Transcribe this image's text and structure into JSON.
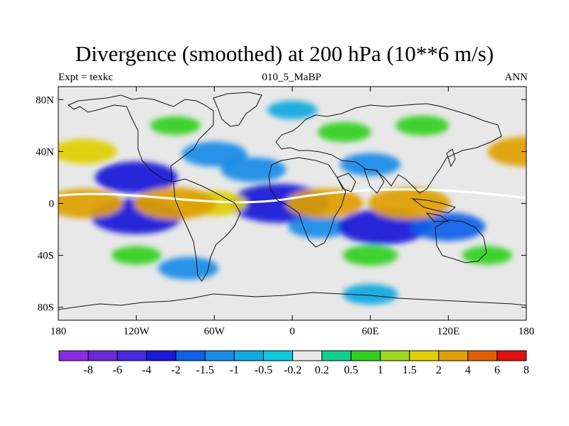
{
  "title": "Divergence (smoothed) at 200 hPa (10**6 m/s)",
  "subtitle_left": "Expt = texkc",
  "subtitle_center": "010_5_MaBP",
  "subtitle_right": "ANN",
  "colors": {
    "land_outline": "#111111",
    "contour_line": "#ffffff",
    "neutral": "#e8e8e8"
  },
  "chart_data": {
    "type": "heatmap",
    "title": "Divergence (smoothed) at 200 hPa (10**6 m/s)",
    "units": "10**6 m/s",
    "level": "200 hPa",
    "x_axis": {
      "range": [
        -180,
        180
      ],
      "ticks": [
        -180,
        -120,
        -60,
        0,
        60,
        120,
        180
      ],
      "tick_labels": [
        "180",
        "120W",
        "60W",
        "0",
        "60E",
        "120E",
        "180"
      ]
    },
    "y_axis": {
      "range": [
        -90,
        90
      ],
      "ticks": [
        80,
        40,
        0,
        -40,
        -80
      ],
      "tick_labels": [
        "80N",
        "40N",
        "0",
        "40S",
        "80S"
      ]
    },
    "colorbar": {
      "levels": [
        -8,
        -6,
        -4,
        -2,
        -1.5,
        -1,
        -0.5,
        -0.2,
        0.2,
        0.5,
        1,
        1.5,
        2,
        4,
        6,
        8
      ],
      "labels": [
        "-8",
        "-6",
        "-4",
        "-2",
        "-1.5",
        "-1",
        "-0.5",
        "-0.2",
        "0.2",
        "0.5",
        "1",
        "1.5",
        "2",
        "4",
        "6",
        "8"
      ],
      "colors": [
        "#8a2be2",
        "#6b2ad6",
        "#4a2ae0",
        "#1a1ad8",
        "#1060e8",
        "#1a8ae8",
        "#10a8e0",
        "#10c8e0",
        "#e8e8e8",
        "#10d090",
        "#30d020",
        "#a0d820",
        "#e0d000",
        "#e0a000",
        "#e06000",
        "#e01010"
      ]
    },
    "features": [
      {
        "lon": -10,
        "lat": 0,
        "value": -3.5
      },
      {
        "lon": -120,
        "lat": 20,
        "value": -2.5
      },
      {
        "lon": -120,
        "lat": -10,
        "value": -3
      },
      {
        "lon": -30,
        "lat": 26,
        "value": -1.5
      },
      {
        "lon": 20,
        "lat": -18,
        "value": -1.2
      },
      {
        "lon": 70,
        "lat": -18,
        "value": -3
      },
      {
        "lon": 120,
        "lat": -18,
        "value": -2
      },
      {
        "lon": -60,
        "lat": 38,
        "value": -1.5
      },
      {
        "lon": 60,
        "lat": 30,
        "value": -1.2
      },
      {
        "lon": -80,
        "lat": -50,
        "value": -1.2
      },
      {
        "lon": 60,
        "lat": -70,
        "value": -0.9
      },
      {
        "lon": 0,
        "lat": 72,
        "value": -0.6
      },
      {
        "lon": -60,
        "lat": 0,
        "value": 1.5
      },
      {
        "lon": 90,
        "lat": 0,
        "value": 2.5
      },
      {
        "lon": 25,
        "lat": 0,
        "value": 2.2
      },
      {
        "lon": -160,
        "lat": 0,
        "value": 2.2
      },
      {
        "lon": 180,
        "lat": 40,
        "value": 2.2
      },
      {
        "lon": -160,
        "lat": 40,
        "value": 1.5
      },
      {
        "lon": -90,
        "lat": 0,
        "value": 2.5
      },
      {
        "lon": 100,
        "lat": 60,
        "value": 0.8
      },
      {
        "lon": -90,
        "lat": 60,
        "value": 0.6
      },
      {
        "lon": 40,
        "lat": 55,
        "value": 0.8
      },
      {
        "lon": -120,
        "lat": -40,
        "value": 0.6
      },
      {
        "lon": 60,
        "lat": -40,
        "value": 0.9
      },
      {
        "lon": 150,
        "lat": -40,
        "value": 0.6
      }
    ]
  }
}
